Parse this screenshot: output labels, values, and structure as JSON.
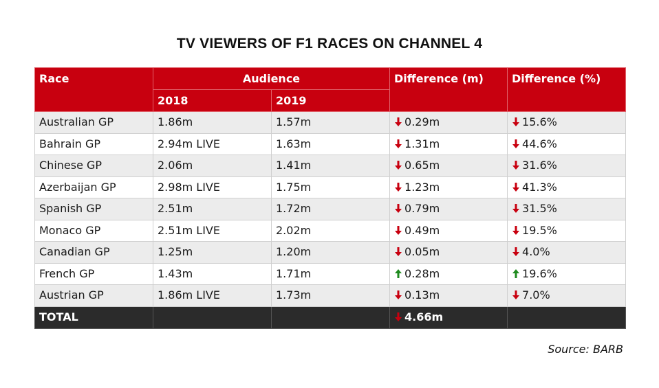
{
  "title": "TV VIEWERS OF F1 RACES ON CHANNEL 4",
  "colors": {
    "header_bg": "#c8000f",
    "total_bg": "#2b2b2b",
    "down_arrow": "#c8000f",
    "up_arrow": "#1e8a1e",
    "row_alt": "#ececec"
  },
  "table": {
    "headers": {
      "race": "Race",
      "audience": "Audience",
      "year_2018": "2018",
      "year_2019": "2019",
      "diff_m": "Difference (m)",
      "diff_pct": "Difference (%)"
    },
    "rows": [
      {
        "race": "Australian GP",
        "y2018": "1.86m",
        "y2019": "1.57m",
        "diff_m": "0.29m",
        "diff_pct": "15.6%",
        "direction": "down"
      },
      {
        "race": "Bahrain GP",
        "y2018": "2.94m LIVE",
        "y2019": "1.63m",
        "diff_m": "1.31m",
        "diff_pct": "44.6%",
        "direction": "down"
      },
      {
        "race": "Chinese GP",
        "y2018": "2.06m",
        "y2019": "1.41m",
        "diff_m": "0.65m",
        "diff_pct": "31.6%",
        "direction": "down"
      },
      {
        "race": "Azerbaijan GP",
        "y2018": "2.98m LIVE",
        "y2019": "1.75m",
        "diff_m": "1.23m",
        "diff_pct": "41.3%",
        "direction": "down"
      },
      {
        "race": "Spanish GP",
        "y2018": "2.51m",
        "y2019": "1.72m",
        "diff_m": "0.79m",
        "diff_pct": "31.5%",
        "direction": "down"
      },
      {
        "race": "Monaco GP",
        "y2018": "2.51m LIVE",
        "y2019": "2.02m",
        "diff_m": "0.49m",
        "diff_pct": "19.5%",
        "direction": "down"
      },
      {
        "race": "Canadian GP",
        "y2018": "1.25m",
        "y2019": "1.20m",
        "diff_m": "0.05m",
        "diff_pct": "4.0%",
        "direction": "down"
      },
      {
        "race": "French GP",
        "y2018": "1.43m",
        "y2019": "1.71m",
        "diff_m": "0.28m",
        "diff_pct": "19.6%",
        "direction": "up"
      },
      {
        "race": "Austrian GP",
        "y2018": "1.86m LIVE",
        "y2019": "1.73m",
        "diff_m": "0.13m",
        "diff_pct": "7.0%",
        "direction": "down"
      }
    ],
    "total": {
      "label": "TOTAL",
      "y2018": "",
      "y2019": "",
      "diff_m": "4.66m",
      "diff_pct": "",
      "direction": "down"
    }
  },
  "source": "Source: BARB"
}
